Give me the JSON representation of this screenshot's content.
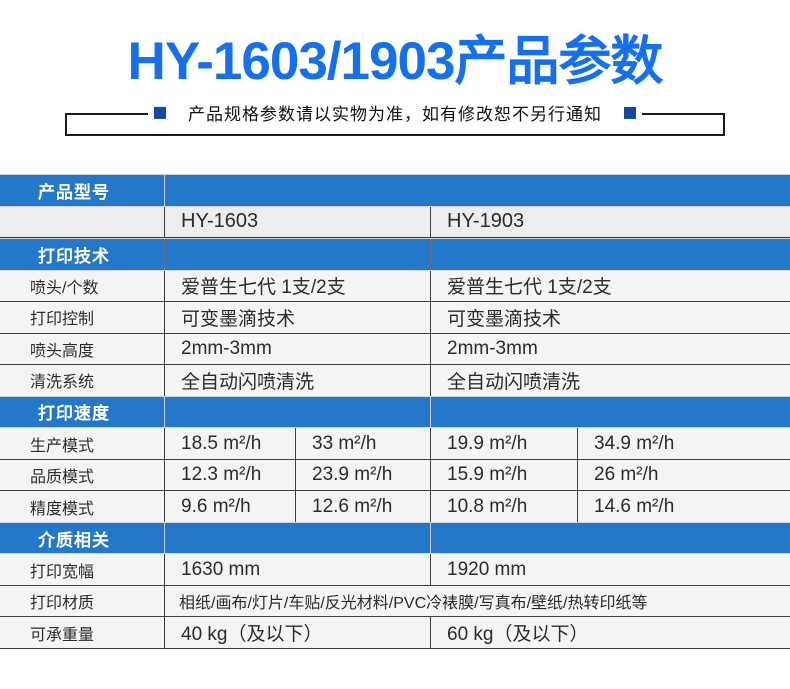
{
  "header": {
    "title": "HY-1603/1903产品参数",
    "notice": "产品规格参数请以实物为准，如有修改恕不另行通知"
  },
  "colors": {
    "title_blue": "#1470f0",
    "section_blue": "#2478cb",
    "square_navy": "#17479c"
  },
  "table": {
    "rows": [
      {
        "type": "section",
        "label": "产品型号"
      },
      {
        "type": "model",
        "values": [
          "HY-1603",
          "HY-1903"
        ]
      },
      {
        "type": "section",
        "label": "打印技术"
      },
      {
        "type": "data2",
        "label": "喷头/个数",
        "values": [
          "爱普生七代  1支/2支",
          "爱普生七代  1支/2支"
        ]
      },
      {
        "type": "data2",
        "label": "打印控制",
        "values": [
          "可变墨滴技术",
          "可变墨滴技术"
        ]
      },
      {
        "type": "data2",
        "label": "喷头高度",
        "values": [
          "2mm-3mm",
          "2mm-3mm"
        ]
      },
      {
        "type": "data2",
        "label": "清洗系统",
        "values": [
          "全自动闪喷清洗",
          "全自动闪喷清洗"
        ]
      },
      {
        "type": "section",
        "label": "打印速度"
      },
      {
        "type": "data4",
        "label": "生产模式",
        "values": [
          "18.5 m²/h",
          "33 m²/h",
          "19.9 m²/h",
          "34.9 m²/h"
        ]
      },
      {
        "type": "data4",
        "label": "品质模式",
        "values": [
          "12.3 m²/h",
          "23.9 m²/h",
          "15.9 m²/h",
          "26 m²/h"
        ]
      },
      {
        "type": "data4",
        "label": "精度模式",
        "values": [
          "9.6 m²/h",
          "12.6 m²/h",
          "10.8 m²/h",
          "14.6 m²/h"
        ]
      },
      {
        "type": "section",
        "label": "介质相关"
      },
      {
        "type": "data2",
        "label": "打印宽幅",
        "values": [
          "1630 mm",
          "1920 mm"
        ]
      },
      {
        "type": "span",
        "label": "打印材质",
        "value": "相纸/画布/灯片/车贴/反光材料/PVC冷裱膜/写真布/壁纸/热转印纸等"
      },
      {
        "type": "data2",
        "label": "可承重量",
        "values": [
          "40 kg（及以下）",
          "60 kg（及以下）"
        ]
      }
    ]
  }
}
